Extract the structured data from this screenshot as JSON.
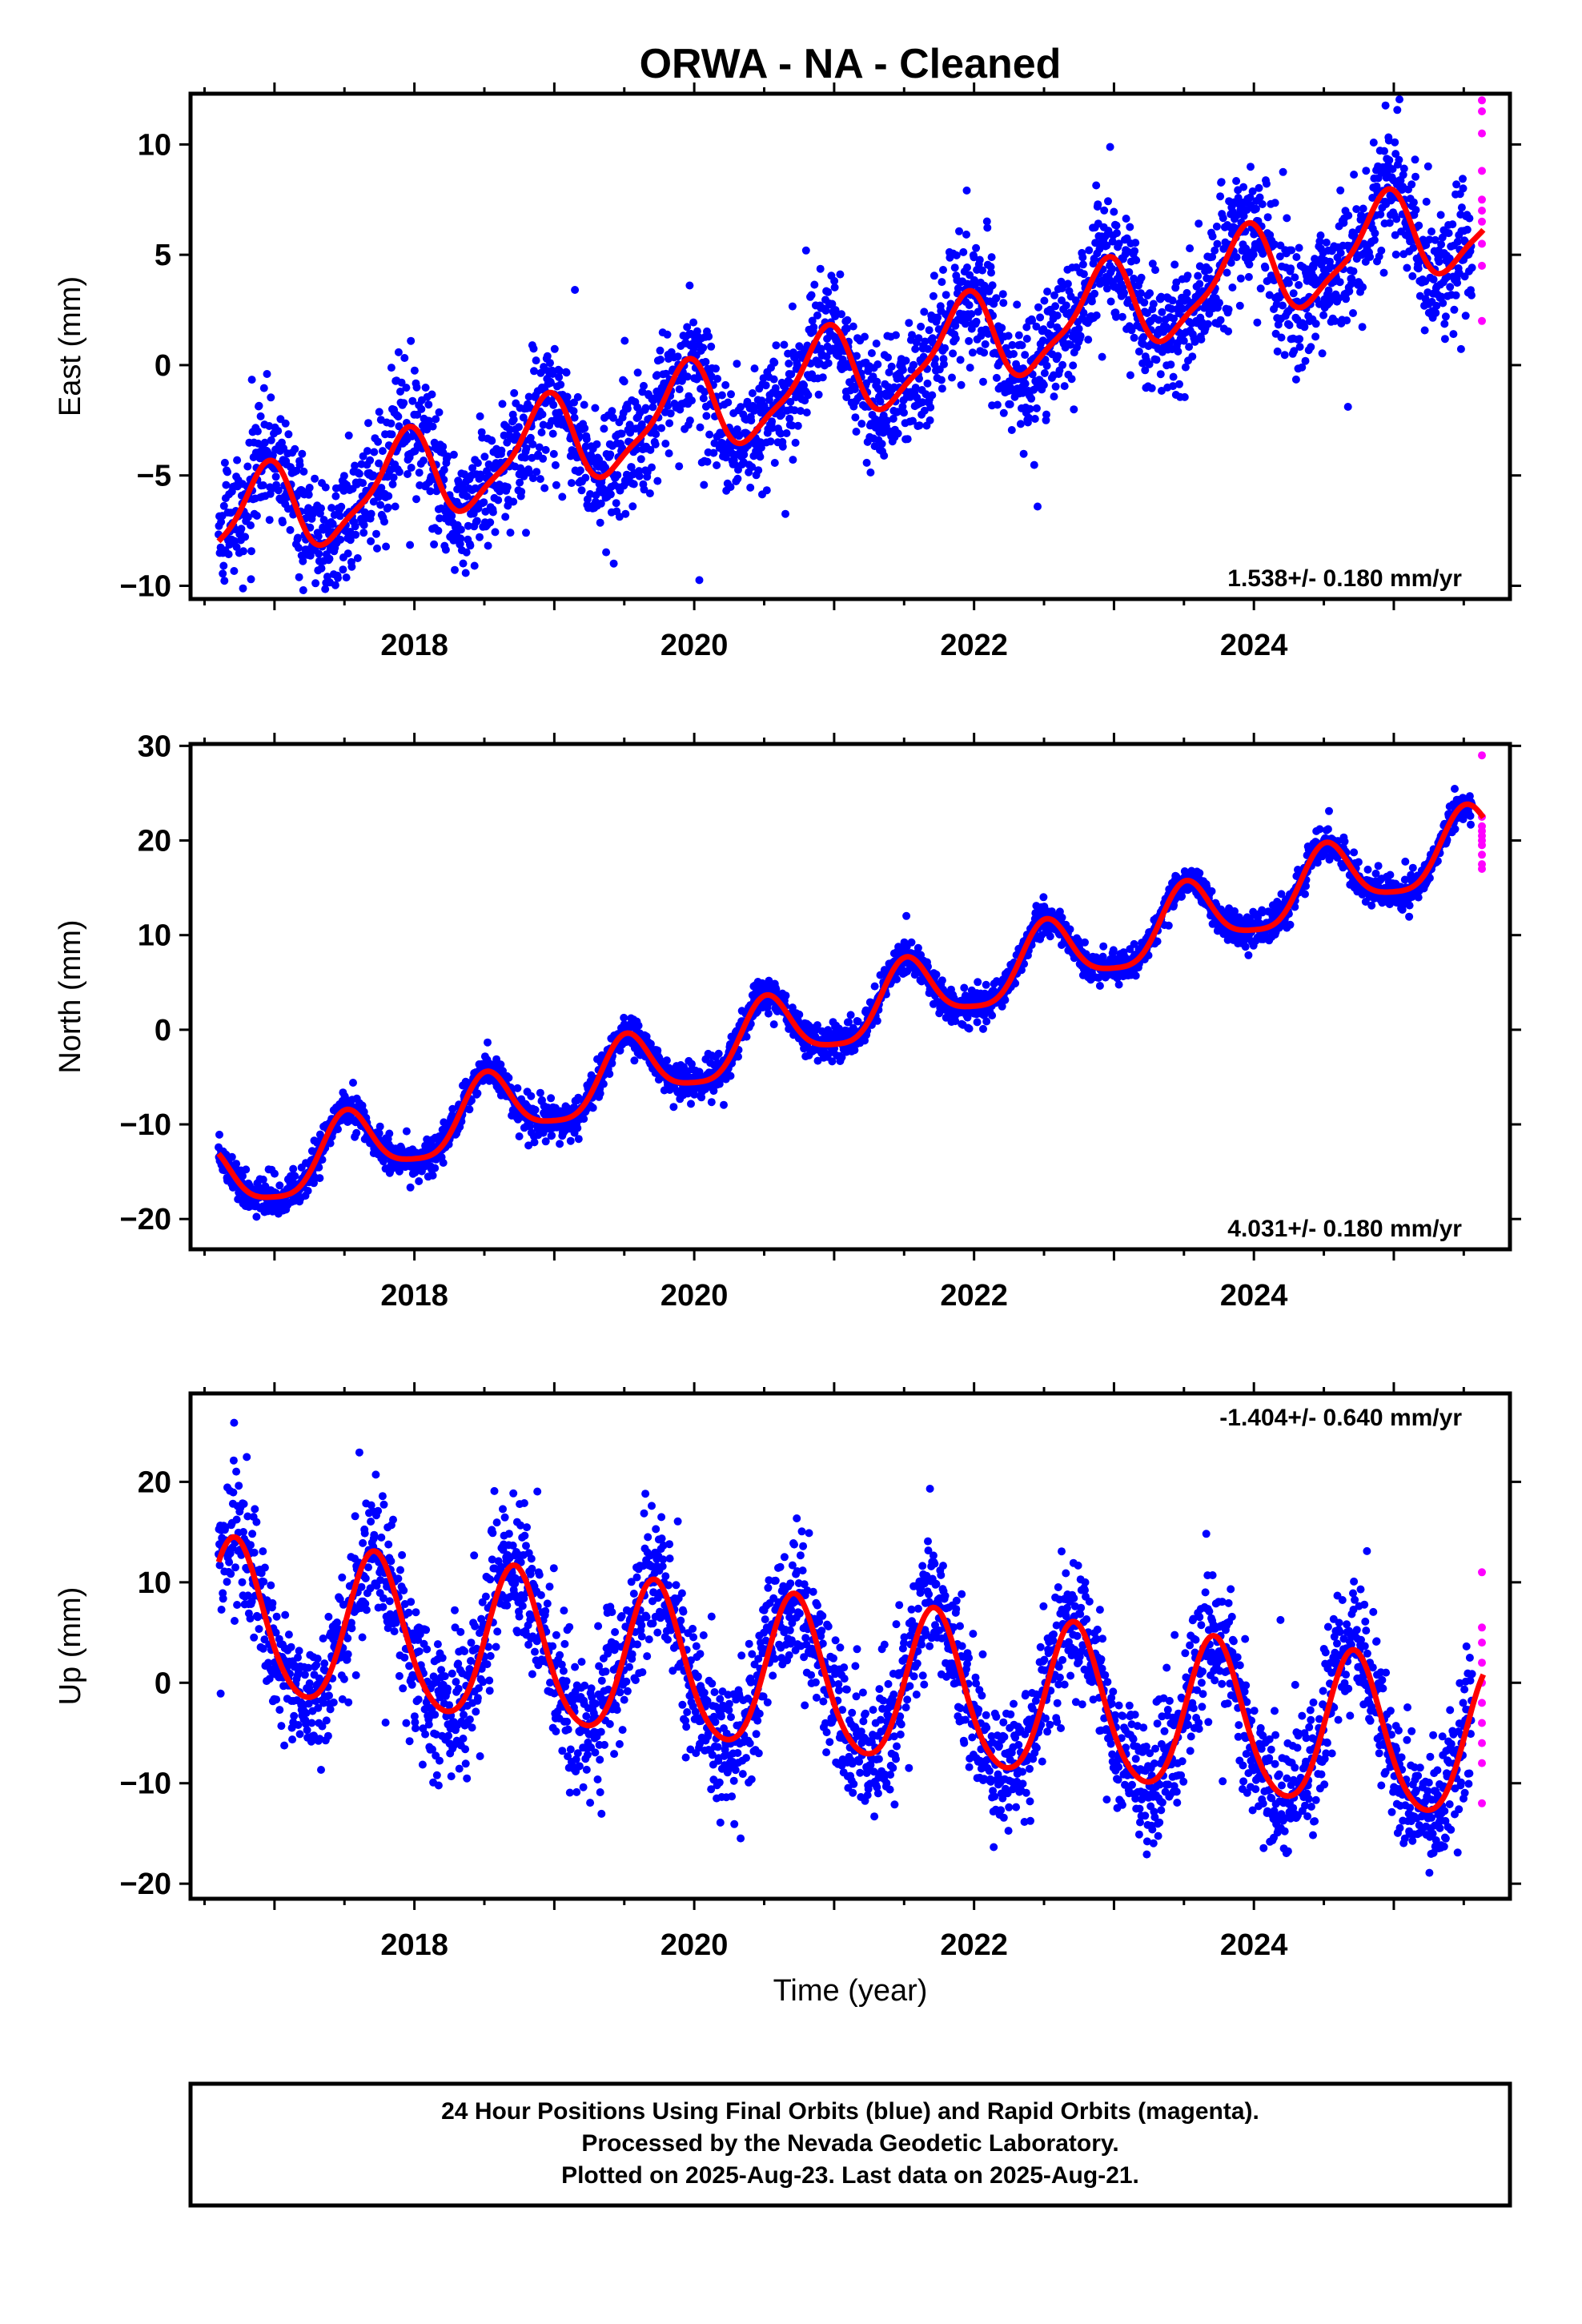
{
  "title": "ORWA  - NA - Cleaned",
  "colors": {
    "final_orbits": "#0000ff",
    "rapid_orbits": "#ff00ff",
    "model_fit": "#ff0000",
    "frame": "#000000"
  },
  "xlabel": "Time (year)",
  "footer": {
    "line1": "24 Hour Positions Using Final Orbits (blue) and Rapid Orbits (magenta).",
    "line2": "Processed by the Nevada Geodetic Laboratory.",
    "line3": "Plotted on 2025-Aug-23. Last data on 2025-Aug-21."
  },
  "chart_data": [
    {
      "type": "scatter",
      "panel": "east",
      "ylabel": "East (mm)",
      "xlim": [
        2016.4,
        2025.83
      ],
      "ylim": [
        -10.6,
        12.3
      ],
      "x_ticks": [
        2018,
        2020,
        2022,
        2024
      ],
      "x_tick_labels": [
        "2018",
        "2020",
        "2022",
        "2024"
      ],
      "y_ticks": [
        -10,
        -5,
        0,
        5,
        10
      ],
      "y_tick_labels": [
        "−10",
        "−5",
        "0",
        "5",
        "10"
      ],
      "rate_annotation": "1.538+/- 0.180 mm/yr",
      "rate_position": "bottom-right",
      "data_start": 2016.6,
      "data_end": 2025.64,
      "rapid_start": 2025.56,
      "model": {
        "slope": 1.538,
        "intercept_at_start": -7.3,
        "annual_amp": 2.0,
        "annual_peak": 0.92,
        "semiannual_amp": 0.55,
        "semiannual_peak": 0.0,
        "scatter": 1.4
      },
      "rapid_values": [
        12.0,
        11.5,
        10.5,
        8.8,
        7.5,
        6.5,
        5.5,
        4.5,
        2.0,
        7.0
      ],
      "series": [
        {
          "name": "Final Orbits",
          "color": "#0000ff",
          "point_count": 3000
        },
        {
          "name": "Rapid Orbits",
          "color": "#ff00ff",
          "point_count": 10
        },
        {
          "name": "Model fit",
          "color": "#ff0000"
        }
      ]
    },
    {
      "type": "scatter",
      "panel": "north",
      "ylabel": "North (mm)",
      "xlim": [
        2016.4,
        2025.83
      ],
      "ylim": [
        -23.2,
        30.2
      ],
      "x_ticks": [
        2018,
        2020,
        2022,
        2024
      ],
      "x_tick_labels": [
        "2018",
        "2020",
        "2022",
        "2024"
      ],
      "y_ticks": [
        -20,
        -10,
        0,
        10,
        20,
        30
      ],
      "y_tick_labels": [
        "−20",
        "−10",
        "0",
        "10",
        "20",
        "30"
      ],
      "rate_annotation": "4.031+/- 0.180 mm/yr",
      "rate_position": "bottom-right",
      "data_start": 2016.6,
      "data_end": 2025.64,
      "rapid_start": 2025.56,
      "model": {
        "slope": 4.031,
        "intercept_at_start": -16.5,
        "annual_amp": 3.6,
        "annual_peak": 0.52,
        "semiannual_amp": 0.8,
        "semiannual_peak": 0.5,
        "scatter": 0.9
      },
      "rapid_values": [
        29.0,
        22.5,
        21.5,
        20.5,
        19.5,
        18.5,
        17.5,
        17.0,
        21.0,
        20.0
      ],
      "series": [
        {
          "name": "Final Orbits",
          "color": "#0000ff",
          "point_count": 3000
        },
        {
          "name": "Rapid Orbits",
          "color": "#ff00ff",
          "point_count": 10
        },
        {
          "name": "Model fit",
          "color": "#ff0000"
        }
      ]
    },
    {
      "type": "scatter",
      "panel": "up",
      "ylabel": "Up (mm)",
      "xlim": [
        2016.4,
        2025.83
      ],
      "ylim": [
        -21.5,
        28.8
      ],
      "x_ticks": [
        2018,
        2020,
        2022,
        2024
      ],
      "x_tick_labels": [
        "2018",
        "2020",
        "2022",
        "2024"
      ],
      "y_ticks": [
        -20,
        -10,
        0,
        10,
        20
      ],
      "y_tick_labels": [
        "−20",
        "−10",
        "0",
        "10",
        "20"
      ],
      "rate_annotation": "-1.404+/- 0.640 mm/yr",
      "rate_position": "top-right",
      "data_start": 2016.6,
      "data_end": 2025.64,
      "rapid_start": 2025.56,
      "model": {
        "slope": -1.404,
        "intercept_at_start": 6.2,
        "annual_amp": 7.6,
        "annual_peak": 0.72,
        "semiannual_amp": 0.9,
        "semiannual_peak": 0.2,
        "scatter": 3.4
      },
      "rapid_values": [
        11.0,
        5.5,
        4.0,
        2.0,
        0.0,
        -2.0,
        -4.0,
        -6.0,
        -8.0,
        -12.0
      ],
      "series": [
        {
          "name": "Final Orbits",
          "color": "#0000ff",
          "point_count": 3000
        },
        {
          "name": "Rapid Orbits",
          "color": "#ff00ff",
          "point_count": 10
        },
        {
          "name": "Model fit",
          "color": "#ff0000"
        }
      ]
    }
  ]
}
